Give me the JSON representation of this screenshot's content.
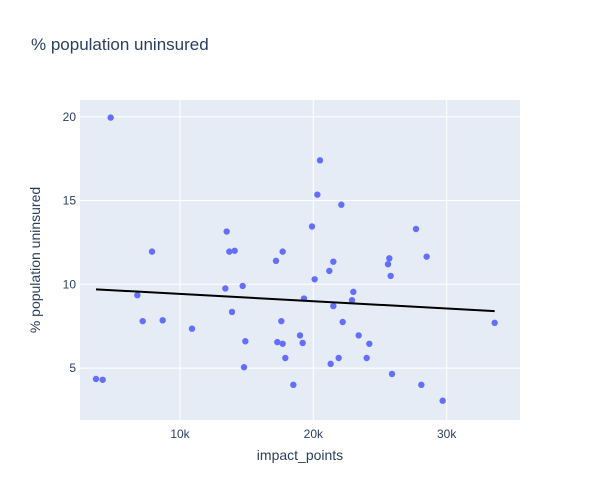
{
  "chart_data": {
    "type": "scatter",
    "title": "% population uninsured",
    "xlabel": "impact_points",
    "ylabel": "% population uninsured",
    "xlim": [
      2500,
      35500
    ],
    "ylim": [
      1.9,
      21.0
    ],
    "x_ticks": [
      {
        "value": 10000,
        "label": "10k"
      },
      {
        "value": 20000,
        "label": "20k"
      },
      {
        "value": 30000,
        "label": "30k"
      }
    ],
    "y_ticks": [
      {
        "value": 5,
        "label": "5"
      },
      {
        "value": 10,
        "label": "10"
      },
      {
        "value": 15,
        "label": "15"
      },
      {
        "value": 20,
        "label": "20"
      }
    ],
    "grid": true,
    "colors": {
      "plot_bg": "#E5ECF6",
      "grid": "#ffffff",
      "marker": "#636EFA",
      "trendline": "#000000",
      "text": "#2a3f5f"
    },
    "trendline": {
      "x": [
        3700,
        33600
      ],
      "y": [
        9.7,
        8.4
      ]
    },
    "points": [
      {
        "x": 3700,
        "y": 4.35
      },
      {
        "x": 4200,
        "y": 4.3
      },
      {
        "x": 4800,
        "y": 19.95
      },
      {
        "x": 6800,
        "y": 9.35
      },
      {
        "x": 7200,
        "y": 7.8
      },
      {
        "x": 7900,
        "y": 11.95
      },
      {
        "x": 8700,
        "y": 7.85
      },
      {
        "x": 10900,
        "y": 7.35
      },
      {
        "x": 13400,
        "y": 9.75
      },
      {
        "x": 13500,
        "y": 13.15
      },
      {
        "x": 13700,
        "y": 11.95
      },
      {
        "x": 13900,
        "y": 8.35
      },
      {
        "x": 14100,
        "y": 12.0
      },
      {
        "x": 14700,
        "y": 9.9
      },
      {
        "x": 14800,
        "y": 5.05
      },
      {
        "x": 14900,
        "y": 6.6
      },
      {
        "x": 17200,
        "y": 11.4
      },
      {
        "x": 17300,
        "y": 6.55
      },
      {
        "x": 17600,
        "y": 7.8
      },
      {
        "x": 17700,
        "y": 6.45
      },
      {
        "x": 17700,
        "y": 11.95
      },
      {
        "x": 17900,
        "y": 5.6
      },
      {
        "x": 18500,
        "y": 4.0
      },
      {
        "x": 19000,
        "y": 6.95
      },
      {
        "x": 19200,
        "y": 6.5
      },
      {
        "x": 19300,
        "y": 9.15
      },
      {
        "x": 19900,
        "y": 13.45
      },
      {
        "x": 20100,
        "y": 10.3
      },
      {
        "x": 20300,
        "y": 15.35
      },
      {
        "x": 20500,
        "y": 17.4
      },
      {
        "x": 21200,
        "y": 10.8
      },
      {
        "x": 21300,
        "y": 5.25
      },
      {
        "x": 21500,
        "y": 11.35
      },
      {
        "x": 21500,
        "y": 8.7
      },
      {
        "x": 21900,
        "y": 5.6
      },
      {
        "x": 22100,
        "y": 14.75
      },
      {
        "x": 22200,
        "y": 7.75
      },
      {
        "x": 22900,
        "y": 9.05
      },
      {
        "x": 23000,
        "y": 9.55
      },
      {
        "x": 23400,
        "y": 6.95
      },
      {
        "x": 24000,
        "y": 5.6
      },
      {
        "x": 24200,
        "y": 6.45
      },
      {
        "x": 25600,
        "y": 11.2
      },
      {
        "x": 25700,
        "y": 11.55
      },
      {
        "x": 25800,
        "y": 10.5
      },
      {
        "x": 25900,
        "y": 4.65
      },
      {
        "x": 27700,
        "y": 13.3
      },
      {
        "x": 28100,
        "y": 4.0
      },
      {
        "x": 28500,
        "y": 11.65
      },
      {
        "x": 29700,
        "y": 3.05
      },
      {
        "x": 33600,
        "y": 7.7
      }
    ]
  }
}
